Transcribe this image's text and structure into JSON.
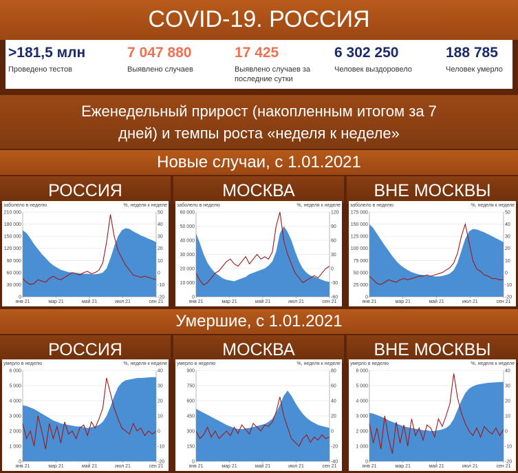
{
  "title": "COVID-19. РОССИЯ",
  "stats": [
    {
      "value": ">181,5 млн",
      "label": "Проведено тестов",
      "color": "#1b2a6b"
    },
    {
      "value": "7 047 880",
      "label": "Выявлено случаев",
      "color": "#f07050"
    },
    {
      "value": "17 425",
      "label": "Выявлено случаев за последние сутки",
      "color": "#f07050"
    },
    {
      "value": "6 302 250",
      "label": "Человек выздоровело",
      "color": "#1b2a6b"
    },
    {
      "value": "188 785",
      "label": "Человек умерло",
      "color": "#1b2a6b"
    }
  ],
  "subtitle_line1": "Еженедельный прирост (накопленным итогом за 7",
  "subtitle_line2": "дней) и темпы роста «неделя к неделе»",
  "section_cases": "Новые случаи, с 1.01.2021",
  "section_deaths": "Умершие, с 1.01.2021",
  "regions": [
    "РОССИЯ",
    "МОСКВА",
    "ВНЕ МОСКВЫ"
  ],
  "colors": {
    "area": "#4a8fd4",
    "line": "#a01818"
  },
  "chart_data": [
    {
      "type": "area",
      "region": "РОССИЯ",
      "ylabel_left": "заболело в неделю",
      "ylabel_right": "%, неделя к неделе",
      "ylim": [
        0,
        210000
      ],
      "yticks": [
        "0",
        "30 000",
        "60 000",
        "90 000",
        "120 000",
        "150 000",
        "180 000",
        "210 000"
      ],
      "y2lim": [
        -20,
        50
      ],
      "y2ticks": [
        "-20",
        "-10",
        "0",
        "10",
        "20",
        "30",
        "40",
        "50"
      ],
      "xticks": [
        "янв 21",
        "мар 21",
        "май 21",
        "июл 21",
        "сен 21"
      ],
      "series": [
        {
          "values": [
            165000,
            158000,
            145000,
            130000,
            118000,
            106000,
            96000,
            86000,
            78000,
            72000,
            67000,
            64000,
            61000,
            60000,
            59000,
            58000,
            57000,
            57000,
            56000,
            56000,
            57000,
            60000,
            70000,
            95000,
            125000,
            150000,
            165000,
            170000,
            168000,
            162000,
            157000,
            152000,
            148000,
            144000,
            140000,
            135000
          ]
        },
        {
          "values": [
            -5,
            -8,
            -10,
            -9,
            -6,
            -7,
            -8,
            -5,
            -3,
            -5,
            -6,
            -4,
            -2,
            0,
            -1,
            -2,
            0,
            1,
            -1,
            0,
            2,
            8,
            25,
            48,
            30,
            18,
            12,
            6,
            2,
            -2,
            -3,
            -4,
            -3,
            -4,
            -5,
            -6
          ]
        }
      ]
    },
    {
      "type": "area",
      "region": "МОСКВА",
      "ylabel_left": "заболело в неделю",
      "ylabel_right": "%, неделя к неделе",
      "ylim": [
        0,
        60000
      ],
      "yticks": [
        "0",
        "10 000",
        "20 000",
        "30 000",
        "40 000",
        "50 000",
        "60 000"
      ],
      "y2lim": [
        -60,
        120
      ],
      "y2ticks": [
        "-60",
        "-30",
        "0",
        "30",
        "60",
        "90",
        "120"
      ],
      "xticks": [
        "янв 21",
        "мар 21",
        "май 21",
        "июл 21",
        "сен 21"
      ],
      "series": [
        {
          "values": [
            45000,
            38000,
            30000,
            24000,
            20000,
            17000,
            15000,
            13000,
            12000,
            11500,
            11000,
            12000,
            13000,
            14000,
            16000,
            17000,
            18000,
            19000,
            20000,
            22000,
            25000,
            32000,
            45000,
            50000,
            46000,
            40000,
            32000,
            25000,
            20000,
            17000,
            15000,
            14000,
            13000,
            12000,
            11000,
            10500
          ]
        },
        {
          "values": [
            -10,
            -25,
            -35,
            -30,
            -20,
            -10,
            -5,
            5,
            15,
            20,
            10,
            5,
            15,
            25,
            10,
            20,
            30,
            20,
            25,
            20,
            35,
            90,
            120,
            60,
            30,
            10,
            -10,
            -20,
            -30,
            -25,
            -20,
            -15,
            -20,
            -10,
            0,
            5
          ]
        }
      ]
    },
    {
      "type": "area",
      "region": "ВНЕ МОСКВЫ",
      "ylabel_left": "заболело в неделю",
      "ylabel_right": "%, неделя к неделе",
      "ylim": [
        0,
        175000
      ],
      "yticks": [
        "0",
        "25 000",
        "50 000",
        "75 000",
        "100 000",
        "125 000",
        "150 000",
        "175 000"
      ],
      "y2lim": [
        -20,
        50
      ],
      "y2ticks": [
        "-20",
        "-10",
        "0",
        "10",
        "20",
        "30",
        "40",
        "50"
      ],
      "xticks": [
        "янв 21",
        "мар 21",
        "май 21",
        "июл 21",
        "сен 21"
      ],
      "series": [
        {
          "values": [
            150000,
            142000,
            130000,
            118000,
            106000,
            95000,
            84000,
            74000,
            66000,
            60000,
            55000,
            51000,
            48000,
            46000,
            45000,
            44000,
            43000,
            42000,
            42000,
            43000,
            45000,
            48000,
            55000,
            70000,
            95000,
            120000,
            135000,
            140000,
            139000,
            136000,
            133000,
            129000,
            125000,
            121000,
            117000,
            113000
          ]
        },
        {
          "values": [
            -3,
            -6,
            -9,
            -10,
            -8,
            -6,
            -7,
            -8,
            -6,
            -5,
            -6,
            -5,
            -4,
            -3,
            -3,
            -2,
            -3,
            -2,
            -1,
            0,
            2,
            4,
            8,
            16,
            30,
            40,
            25,
            10,
            3,
            1,
            -2,
            -3,
            -5,
            -5,
            -6,
            -6
          ]
        }
      ]
    },
    {
      "type": "area",
      "region": "РОССИЯ",
      "ylabel_left": "умерло в неделю",
      "ylabel_right": "%, неделя к неделе",
      "ylim": [
        0,
        6000
      ],
      "yticks": [
        "0",
        "1 000",
        "2 000",
        "3 000",
        "4 000",
        "5 000",
        "6 000"
      ],
      "y2lim": [
        -20,
        40
      ],
      "y2ticks": [
        "-20",
        "-10",
        "0",
        "10",
        "20",
        "30",
        "40"
      ],
      "xticks": [
        "янв 21",
        "мар 21",
        "май 21",
        "июл 21",
        "сен 21"
      ],
      "series": [
        {
          "values": [
            3700,
            3650,
            3550,
            3450,
            3300,
            3150,
            3000,
            2850,
            2700,
            2600,
            2500,
            2450,
            2400,
            2350,
            2300,
            2300,
            2250,
            2200,
            2250,
            2300,
            2400,
            2600,
            3000,
            3600,
            4300,
            4900,
            5200,
            5350,
            5400,
            5450,
            5500,
            5500,
            5520,
            5540,
            5560,
            5550
          ]
        },
        {
          "values": [
            5,
            -5,
            0,
            -10,
            10,
            0,
            -12,
            5,
            -5,
            3,
            -8,
            6,
            -2,
            0,
            -5,
            2,
            4,
            -3,
            6,
            2,
            8,
            15,
            35,
            25,
            15,
            8,
            2,
            0,
            -2,
            5,
            0,
            2,
            -3,
            0,
            -2,
            0
          ]
        }
      ]
    },
    {
      "type": "area",
      "region": "МОСКВА",
      "ylabel_left": "умерло в неделю",
      "ylabel_right": "%, неделя к неделе",
      "ylim": [
        0,
        900
      ],
      "yticks": [
        "0",
        "150",
        "300",
        "450",
        "600",
        "750",
        "900"
      ],
      "y2lim": [
        -40,
        80
      ],
      "y2ticks": [
        "-40",
        "-20",
        "0",
        "20",
        "40",
        "60",
        "80"
      ],
      "xticks": [
        "янв 21",
        "мар 21",
        "май 21",
        "июл 21",
        "сен 21"
      ],
      "series": [
        {
          "values": [
            520,
            500,
            480,
            460,
            440,
            420,
            400,
            380,
            360,
            345,
            330,
            320,
            320,
            325,
            330,
            340,
            350,
            360,
            370,
            390,
            420,
            480,
            560,
            650,
            700,
            650,
            580,
            520,
            470,
            430,
            400,
            380,
            360,
            350,
            340,
            330
          ]
        },
        {
          "values": [
            0,
            -10,
            -5,
            5,
            -8,
            0,
            -10,
            -5,
            0,
            -6,
            5,
            -3,
            8,
            2,
            -4,
            10,
            5,
            0,
            8,
            6,
            12,
            25,
            45,
            20,
            5,
            -10,
            -15,
            -20,
            -10,
            -5,
            -15,
            -8,
            -12,
            -5,
            -10,
            -8
          ]
        }
      ]
    },
    {
      "type": "area",
      "region": "ВНЕ МОСКВЫ",
      "ylabel_left": "умерло в неделю",
      "ylabel_right": "%, неделя к неделе",
      "ylim": [
        0,
        6000
      ],
      "yticks": [
        "0",
        "1 000",
        "2 000",
        "3 000",
        "4 000",
        "5 000",
        "6 000"
      ],
      "y2lim": [
        -20,
        40
      ],
      "y2ticks": [
        "-20",
        "-10",
        "0",
        "10",
        "20",
        "30",
        "40"
      ],
      "xticks": [
        "янв 21",
        "мар 21",
        "май 21",
        "июл 21",
        "сен 21"
      ],
      "series": [
        {
          "values": [
            3200,
            3150,
            3050,
            2950,
            2850,
            2700,
            2600,
            2500,
            2400,
            2300,
            2250,
            2200,
            2150,
            2100,
            2050,
            2050,
            2000,
            2000,
            2050,
            2100,
            2200,
            2400,
            2800,
            3400,
            4000,
            4500,
            4800,
            4950,
            5050,
            5100,
            5150,
            5180,
            5200,
            5220,
            5230,
            5240
          ]
        },
        {
          "values": [
            5,
            -8,
            2,
            -12,
            10,
            -5,
            -15,
            6,
            -8,
            4,
            -10,
            8,
            -3,
            2,
            -6,
            4,
            2,
            -4,
            8,
            3,
            10,
            18,
            38,
            22,
            12,
            5,
            0,
            -3,
            2,
            -4,
            3,
            0,
            -2,
            2,
            -3,
            1
          ]
        }
      ]
    }
  ]
}
